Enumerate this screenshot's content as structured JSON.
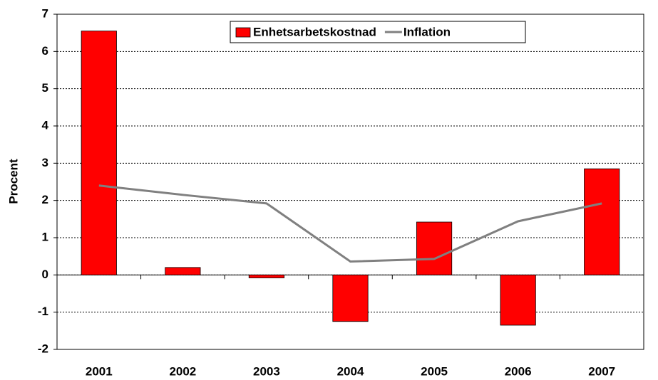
{
  "chart_data": {
    "type": "bar",
    "y_label": "Procent",
    "categories": [
      "2001",
      "2002",
      "2003",
      "2004",
      "2005",
      "2006",
      "2007"
    ],
    "series": [
      {
        "name": "Enhetsarbetskostnad",
        "type": "bar",
        "color": "#ff0000",
        "values": [
          6.55,
          0.2,
          -0.08,
          -1.25,
          1.42,
          -1.35,
          2.85
        ]
      },
      {
        "name": "Inflation",
        "type": "line",
        "color": "#808080",
        "values": [
          2.4,
          2.15,
          1.92,
          0.36,
          0.43,
          1.44,
          1.92
        ]
      }
    ],
    "ylim": [
      -2,
      7
    ],
    "yticks": [
      -2,
      -1,
      0,
      1,
      2,
      3,
      4,
      5,
      6,
      7
    ],
    "grid": true,
    "legend": "top"
  }
}
